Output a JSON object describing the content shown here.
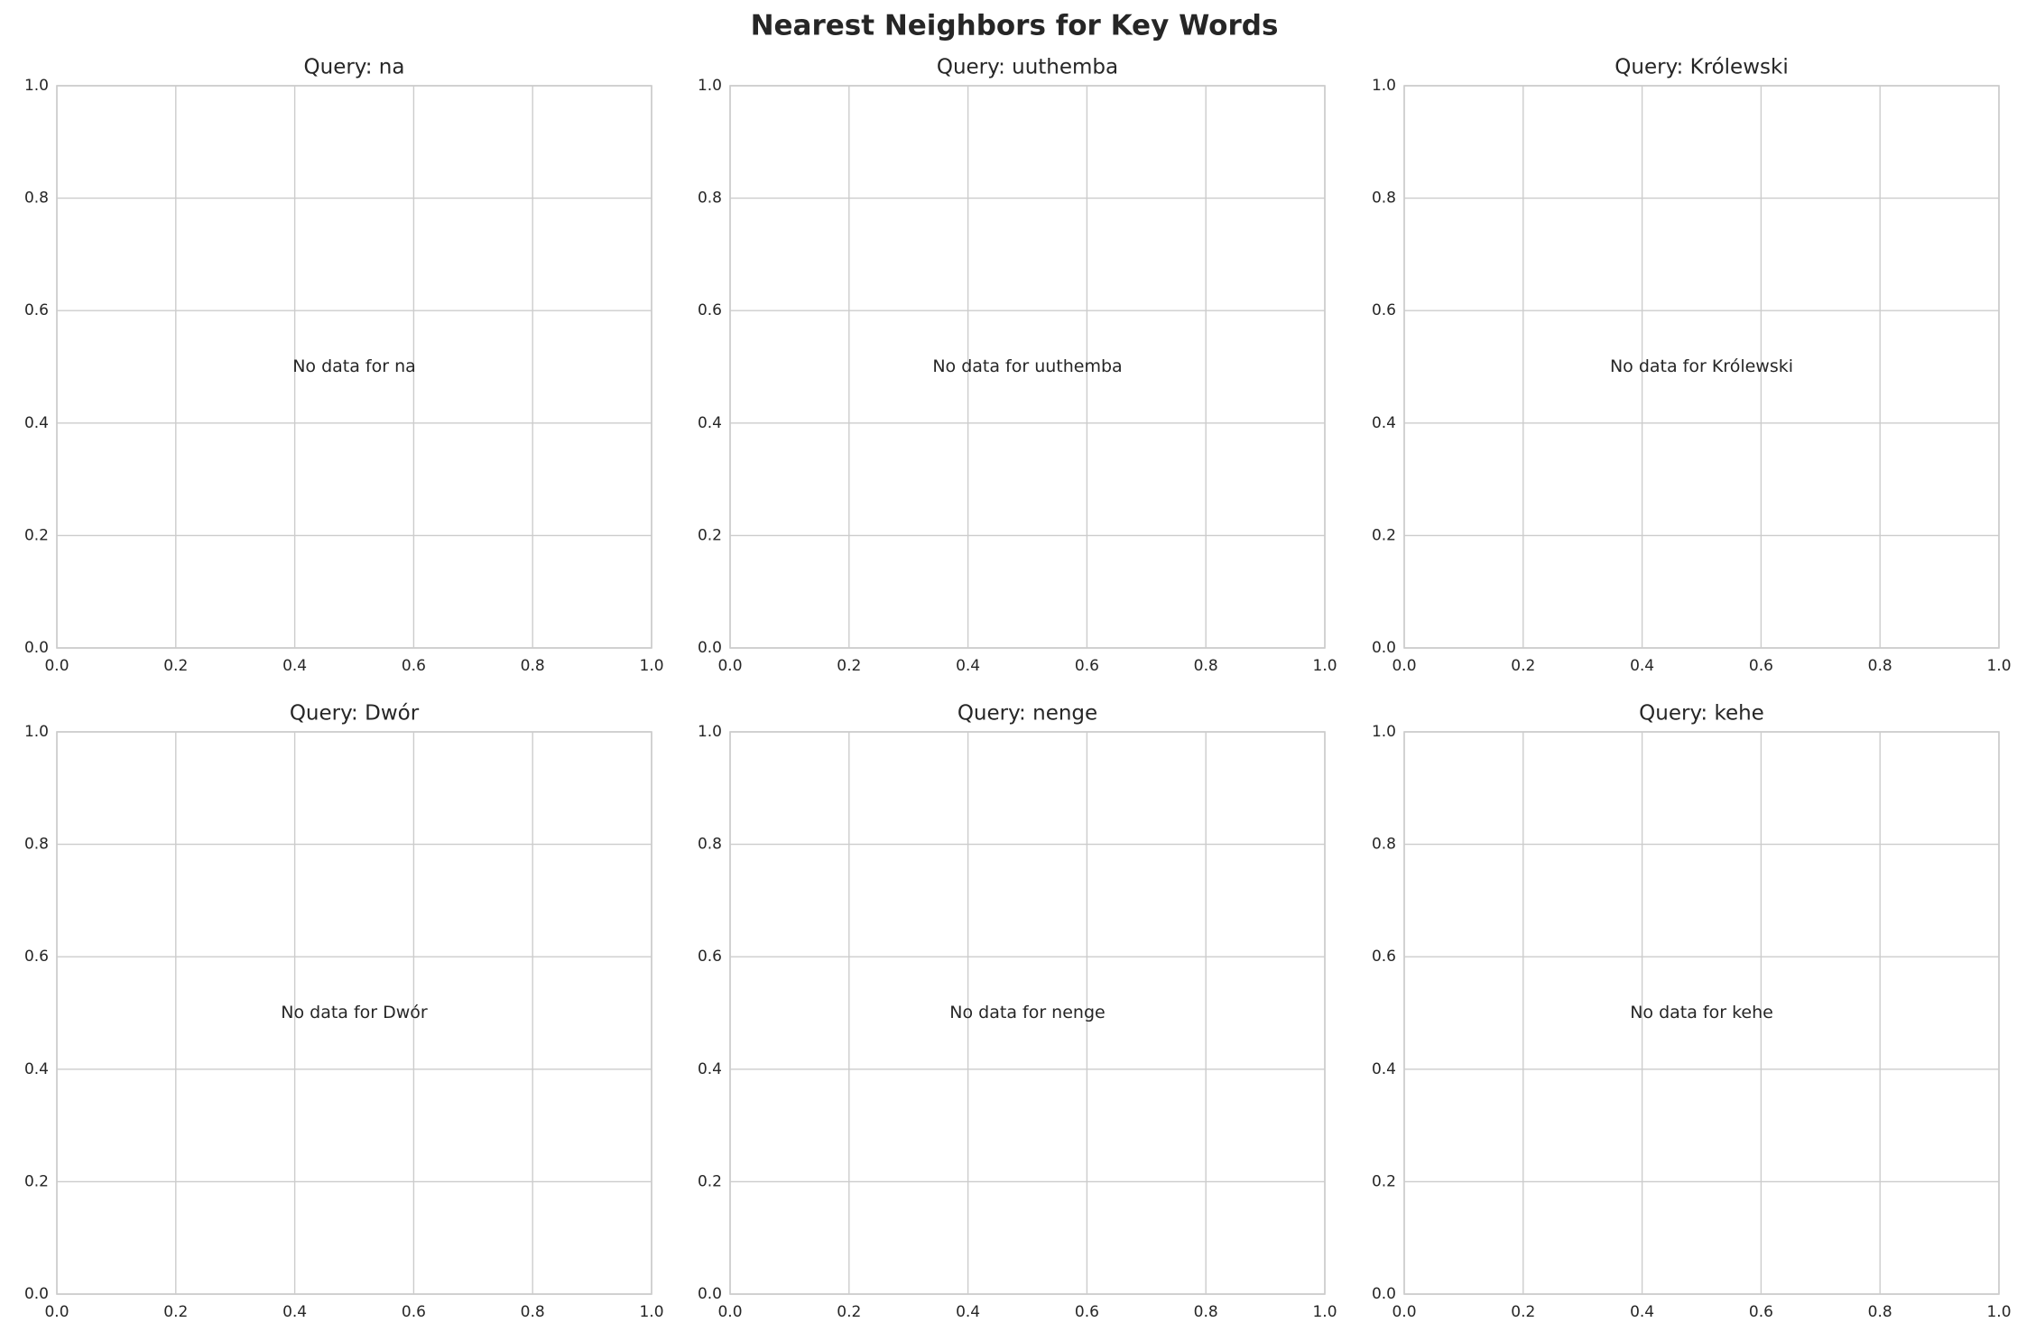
{
  "title": "Nearest Neighbors for Key Words",
  "chart_data": [
    {
      "type": "scatter",
      "title": "Query: na",
      "annotation": "No data for na",
      "xlim": [
        0,
        1
      ],
      "ylim": [
        0,
        1
      ],
      "xticks": [
        {
          "value": 0,
          "label": "0.0"
        },
        0.2,
        0.4,
        0.6,
        0.8,
        {
          "value": 1,
          "label": "1.0"
        }
      ],
      "yticks": [
        {
          "value": 0,
          "label": "0.0"
        },
        0.2,
        0.4,
        0.6,
        0.8,
        {
          "value": 1,
          "label": "1.0"
        }
      ],
      "grid": true
    },
    {
      "type": "scatter",
      "title": "Query: uuthemba",
      "annotation": "No data for uuthemba",
      "xlim": [
        0,
        1
      ],
      "ylim": [
        0,
        1
      ],
      "xticks": [
        {
          "value": 0,
          "label": "0.0"
        },
        0.2,
        0.4,
        0.6,
        0.8,
        {
          "value": 1,
          "label": "1.0"
        }
      ],
      "yticks": [
        {
          "value": 0,
          "label": "0.0"
        },
        0.2,
        0.4,
        0.6,
        0.8,
        {
          "value": 1,
          "label": "1.0"
        }
      ],
      "grid": true
    },
    {
      "type": "scatter",
      "title": "Query: Królewski",
      "annotation": "No data for Królewski",
      "xlim": [
        0,
        1
      ],
      "ylim": [
        0,
        1
      ],
      "xticks": [
        {
          "value": 0,
          "label": "0.0"
        },
        0.2,
        0.4,
        0.6,
        0.8,
        {
          "value": 1,
          "label": "1.0"
        }
      ],
      "yticks": [
        {
          "value": 0,
          "label": "0.0"
        },
        0.2,
        0.4,
        0.6,
        0.8,
        {
          "value": 1,
          "label": "1.0"
        }
      ],
      "grid": true
    },
    {
      "type": "scatter",
      "title": "Query: Dwór",
      "annotation": "No data for Dwór",
      "xlim": [
        0,
        1
      ],
      "ylim": [
        0,
        1
      ],
      "xticks": [
        {
          "value": 0,
          "label": "0.0"
        },
        0.2,
        0.4,
        0.6,
        0.8,
        {
          "value": 1,
          "label": "1.0"
        }
      ],
      "yticks": [
        {
          "value": 0,
          "label": "0.0"
        },
        0.2,
        0.4,
        0.6,
        0.8,
        {
          "value": 1,
          "label": "1.0"
        }
      ],
      "grid": true
    },
    {
      "type": "scatter",
      "title": "Query: nenge",
      "annotation": "No data for nenge",
      "xlim": [
        0,
        1
      ],
      "ylim": [
        0,
        1
      ],
      "xticks": [
        {
          "value": 0,
          "label": "0.0"
        },
        0.2,
        0.4,
        0.6,
        0.8,
        {
          "value": 1,
          "label": "1.0"
        }
      ],
      "yticks": [
        {
          "value": 0,
          "label": "0.0"
        },
        0.2,
        0.4,
        0.6,
        0.8,
        {
          "value": 1,
          "label": "1.0"
        }
      ],
      "grid": true
    },
    {
      "type": "scatter",
      "title": "Query: kehe",
      "annotation": "No data for kehe",
      "xlim": [
        0,
        1
      ],
      "ylim": [
        0,
        1
      ],
      "xticks": [
        {
          "value": 0,
          "label": "0.0"
        },
        0.2,
        0.4,
        0.6,
        0.8,
        {
          "value": 1,
          "label": "1.0"
        }
      ],
      "yticks": [
        {
          "value": 0,
          "label": "0.0"
        },
        0.2,
        0.4,
        0.6,
        0.8,
        {
          "value": 1,
          "label": "1.0"
        }
      ],
      "grid": true
    }
  ]
}
